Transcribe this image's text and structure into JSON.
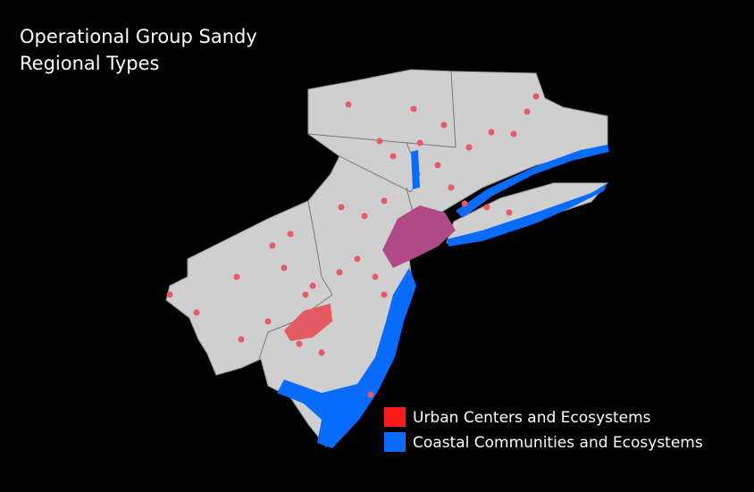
{
  "title": [
    "Operational Group Sandy",
    "Regional Types"
  ],
  "legend": [
    {
      "label": "Urban Centers and Ecosystems",
      "color": "#ff1a1a"
    },
    {
      "label": "Coastal Communities and Ecosystems",
      "color": "#0a6cff"
    }
  ]
}
